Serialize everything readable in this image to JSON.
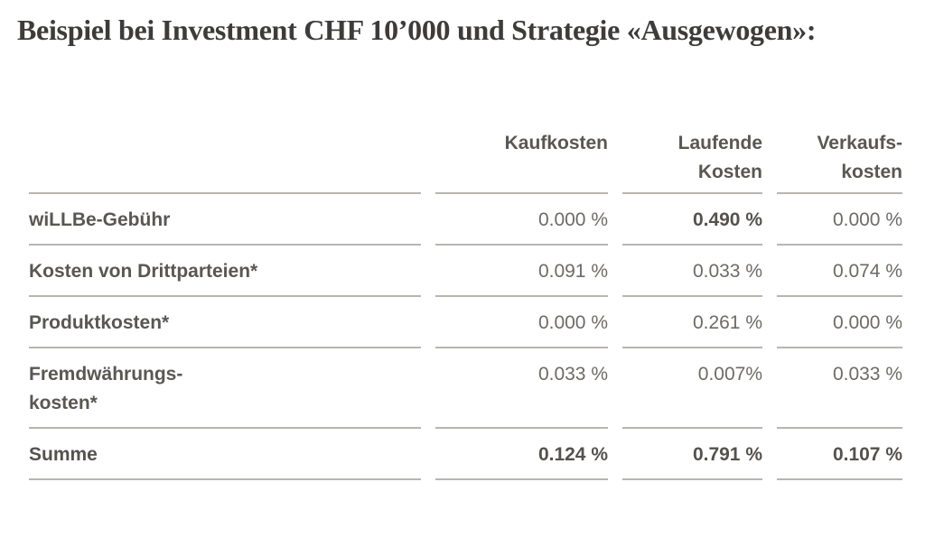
{
  "page": {
    "title": "Beispiel bei Investment CHF 10’000 und Strategie «Ausgewogen»:"
  },
  "table": {
    "columns": [
      "Kaufkosten",
      "Laufende\nKosten",
      "Verkaufs-\nkosten"
    ],
    "rows": [
      {
        "label": "wiLLBe-Gebühr",
        "values": [
          "0.000 %",
          "0.490 %",
          "0.000 %"
        ]
      },
      {
        "label": "Kosten von Drittparteien*",
        "values": [
          "0.091 %",
          "0.033 %",
          "0.074 %"
        ]
      },
      {
        "label": "Produktkosten*",
        "values": [
          "0.000 %",
          "0.261 %",
          "0.000 %"
        ]
      },
      {
        "label": "Fremdwährungs-\nkosten*",
        "values": [
          "0.033 %",
          "0.007%",
          "0.033 %"
        ]
      },
      {
        "label": "Summe",
        "values": [
          "0.124 %",
          "0.791 %",
          "0.107 %"
        ]
      }
    ]
  }
}
